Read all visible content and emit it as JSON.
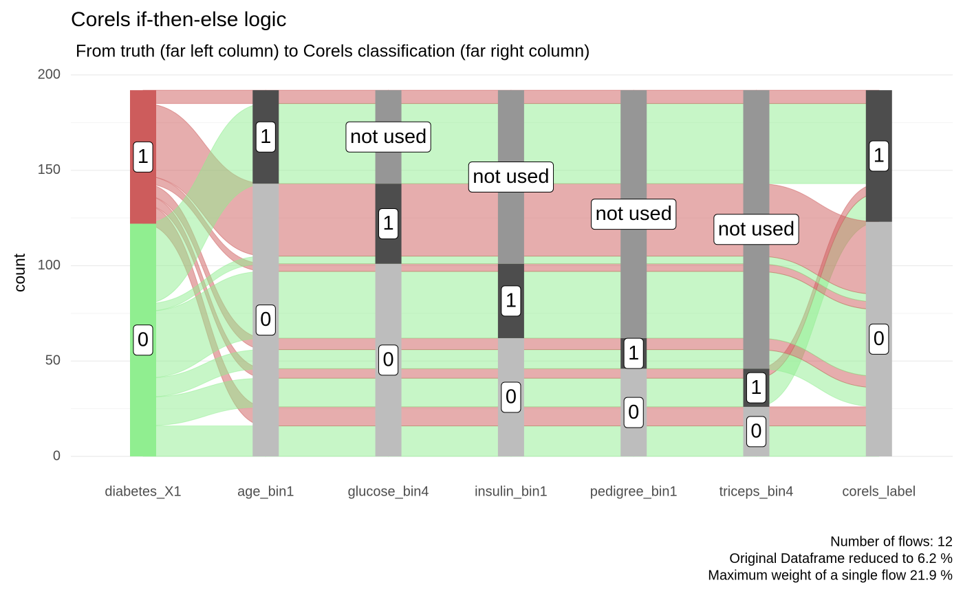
{
  "chart_data": {
    "type": "alluvial",
    "title": "Corels if-then-else logic",
    "subtitle": "From truth (far left column) to Corels classification (far right column)",
    "y_label": "count",
    "ylim": [
      0,
      200
    ],
    "yticks": [
      0,
      50,
      100,
      150,
      200
    ],
    "grid": true,
    "axes": [
      "diabetes_X1",
      "age_bin1",
      "glucose_bin4",
      "insulin_bin1",
      "pedigree_bin1",
      "triceps_bin4",
      "corels_label"
    ],
    "level_order": [
      "0",
      "1",
      "not used"
    ],
    "flow_colors": {
      "0": "#90ee90",
      "1": "#cd5c5c"
    },
    "stratum_colors": {
      "0": "#bdbdbd",
      "1": "#4d4d4d",
      "not used": "#969696"
    },
    "flows": [
      {
        "path": [
          "0",
          "0",
          "0",
          "0",
          "0",
          "0",
          "0"
        ],
        "value": 16
      },
      {
        "path": [
          "1",
          "0",
          "0",
          "0",
          "0",
          "0",
          "0"
        ],
        "value": 10
      },
      {
        "path": [
          "0",
          "0",
          "0",
          "0",
          "0",
          "1",
          "1"
        ],
        "value": 15
      },
      {
        "path": [
          "1",
          "0",
          "0",
          "0",
          "0",
          "1",
          "1"
        ],
        "value": 5
      },
      {
        "path": [
          "0",
          "0",
          "0",
          "0",
          "1",
          "not used",
          "0"
        ],
        "value": 10
      },
      {
        "path": [
          "1",
          "0",
          "0",
          "0",
          "1",
          "not used",
          "0"
        ],
        "value": 6
      },
      {
        "path": [
          "0",
          "0",
          "0",
          "1",
          "not used",
          "not used",
          "0"
        ],
        "value": 35
      },
      {
        "path": [
          "1",
          "0",
          "0",
          "1",
          "not used",
          "not used",
          "0"
        ],
        "value": 4
      },
      {
        "path": [
          "0",
          "0",
          "1",
          "not used",
          "not used",
          "not used",
          "0"
        ],
        "value": 4
      },
      {
        "path": [
          "1",
          "0",
          "1",
          "not used",
          "not used",
          "not used",
          "0"
        ],
        "value": 38
      },
      {
        "path": [
          "0",
          "1",
          "not used",
          "not used",
          "not used",
          "not used",
          "1"
        ],
        "value": 42
      },
      {
        "path": [
          "1",
          "1",
          "not used",
          "not used",
          "not used",
          "not used",
          "1"
        ],
        "value": 7
      }
    ],
    "caption": [
      "Number of flows: 12",
      "Original Dataframe reduced to 6.2 %",
      "Maximum weight of a single flow 21.9 %"
    ]
  }
}
